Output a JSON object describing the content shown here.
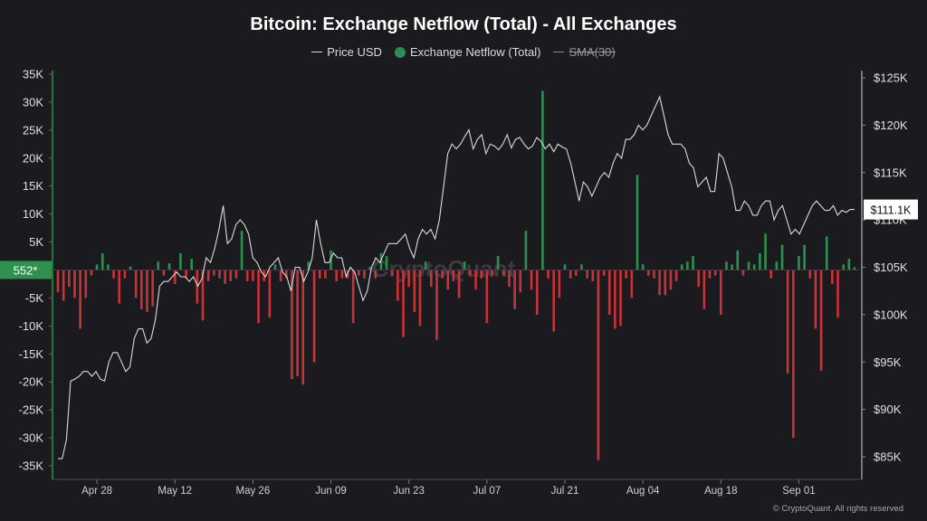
{
  "chart_data": {
    "type": "bar+line",
    "title": "Bitcoin: Exchange Netflow (Total) - All Exchanges",
    "legend": [
      {
        "name": "Price USD",
        "kind": "line",
        "color": "#d8d8d8"
      },
      {
        "name": "Exchange Netflow (Total)",
        "kind": "dot",
        "color": "#2e8b57"
      },
      {
        "name": "SMA(30)",
        "kind": "line-struck",
        "color": "#888888"
      }
    ],
    "colors": {
      "positive": "#2f8f4e",
      "negative": "#c8333a",
      "price": "#dadada",
      "background": "#1b1b1f"
    },
    "x_ticks": [
      "Apr 28",
      "May 12",
      "May 26",
      "Jun 09",
      "Jun 23",
      "Jul 07",
      "Jul 21",
      "Aug 04",
      "Aug 18",
      "Sep 01"
    ],
    "x_tick_day_index": [
      7,
      21,
      35,
      49,
      63,
      77,
      91,
      105,
      119,
      133
    ],
    "y_left_ticks": [
      "35K",
      "30K",
      "25K",
      "20K",
      "15K",
      "10K",
      "5K",
      "0",
      "-5K",
      "-10K",
      "-15K",
      "-20K",
      "-25K",
      "-30K",
      "-35K"
    ],
    "y_left_values": [
      35000,
      30000,
      25000,
      20000,
      15000,
      10000,
      5000,
      0,
      -5000,
      -10000,
      -15000,
      -20000,
      -25000,
      -30000,
      -35000
    ],
    "y_left_range": [
      -35000,
      35000
    ],
    "y_right_ticks": [
      "$125K",
      "$120K",
      "$115K",
      "$110K",
      "$105K",
      "$100K",
      "$95K",
      "$90K",
      "$85K"
    ],
    "y_right_values": [
      125000,
      120000,
      115000,
      110000,
      105000,
      100000,
      95000,
      90000,
      85000
    ],
    "y_right_range": [
      85000,
      125000
    ],
    "last_netflow_label": "552*",
    "last_price_label": "$111.1K",
    "netflow": [
      -4000,
      -5000,
      -3000,
      -5000,
      -10500,
      -5000,
      -1000,
      1000,
      3000,
      1000,
      -1500,
      -6000,
      -1500,
      -5000,
      1000,
      -4000,
      -7000,
      -7500,
      -6500,
      1500,
      -1000,
      1200,
      -2000,
      3000,
      -1000,
      2000,
      -1500,
      -5000,
      -9000,
      -1500,
      -1000,
      -7000,
      1000,
      -2500,
      500,
      -2000,
      -1500,
      7000,
      -2000,
      -2000,
      -6000,
      -2000,
      -9500,
      -1000,
      -1500,
      -6500,
      1200,
      1000,
      -2000,
      -8500,
      -1000,
      500,
      -3000,
      -19500,
      -19000,
      -20500,
      1500,
      -16500,
      -1000,
      -1500,
      -1500,
      -2000,
      3500,
      -1000,
      -2500,
      -1500,
      -9500,
      -1000,
      -2000,
      -1500,
      500,
      -1500,
      -1000,
      -2000,
      2500,
      -1000,
      3000,
      -1000,
      -1500,
      -1500,
      -5500,
      -12000,
      -1000,
      -3000,
      -7500,
      -10000,
      1500,
      -3000,
      -12500,
      -1000,
      -1500,
      -3500,
      -2000,
      -5000,
      1500,
      -1000,
      -3500,
      -1500,
      -9500,
      -1000,
      2500,
      -1000,
      -3000,
      -7000,
      -4000,
      -4500,
      7000,
      -3500,
      -8000,
      1000,
      -1500,
      -11000,
      -5000,
      -10000,
      1000,
      -5000,
      -1500,
      4500,
      -2000,
      -1500,
      -2500,
      -3000,
      -4000,
      1000,
      -1000,
      -8000,
      -1500,
      -15000,
      -1000,
      -1500,
      1000,
      500,
      -2000,
      -3000,
      -1000,
      -1000,
      -2500,
      -10000,
      4000,
      -3500,
      -2000,
      -4500,
      -1000,
      -3000,
      500,
      1500,
      -1500,
      -1000,
      -2000,
      1500,
      1500,
      2000,
      -1500,
      1000,
      -4500,
      -7500,
      -2000,
      -1500,
      1500,
      -1000,
      -7000,
      -4000,
      -5500,
      -1500,
      -1500,
      2000,
      3000,
      -2000,
      1500,
      -1500,
      1000,
      -1500,
      1000,
      -6000,
      -2000,
      -2500,
      -3000,
      500,
      1500,
      2000,
      3500,
      -1500,
      1000,
      3000,
      -1000,
      1000,
      1500,
      1000,
      -1000,
      1000,
      -1500,
      1000,
      -3000,
      -1500,
      -2000,
      -1000,
      1500,
      3500,
      -1000,
      -1000,
      1000,
      -1000,
      1500,
      -2000,
      1000,
      -1000,
      -1000,
      2000,
      -1000,
      -1500,
      1000,
      1500,
      -1000,
      1000,
      500
    ],
    "netflow_bars": [
      {
        "day": 0,
        "value": -4000
      },
      {
        "day": 1,
        "value": -5500
      },
      {
        "day": 2,
        "value": -3000
      },
      {
        "day": 3,
        "value": -5000
      },
      {
        "day": 4,
        "value": -10500
      },
      {
        "day": 5,
        "value": -5000
      },
      {
        "day": 6,
        "value": -1000
      },
      {
        "day": 7,
        "value": 1000
      },
      {
        "day": 8,
        "value": 3000
      },
      {
        "day": 9,
        "value": 1000
      },
      {
        "day": 10,
        "value": -1500
      },
      {
        "day": 11,
        "value": -6000
      },
      {
        "day": 12,
        "value": -1500
      },
      {
        "day": 13,
        "value": 600
      },
      {
        "day": 14,
        "value": -5000
      },
      {
        "day": 15,
        "value": -7000
      },
      {
        "day": 16,
        "value": -7500
      },
      {
        "day": 17,
        "value": -6500
      },
      {
        "day": 18,
        "value": 1500
      },
      {
        "day": 19,
        "value": -1000
      },
      {
        "day": 20,
        "value": 1200
      },
      {
        "day": 21,
        "value": -2500
      },
      {
        "day": 22,
        "value": 3000
      },
      {
        "day": 23,
        "value": -1500
      },
      {
        "day": 24,
        "value": 2000
      },
      {
        "day": 25,
        "value": -6000
      },
      {
        "day": 26,
        "value": -9000
      },
      {
        "day": 27,
        "value": -2000
      },
      {
        "day": 28,
        "value": -1000
      },
      {
        "day": 29,
        "value": -1500
      },
      {
        "day": 30,
        "value": -2500
      },
      {
        "day": 31,
        "value": -2000
      },
      {
        "day": 32,
        "value": -1500
      },
      {
        "day": 33,
        "value": 7000
      },
      {
        "day": 34,
        "value": -2000
      },
      {
        "day": 35,
        "value": -2000
      },
      {
        "day": 36,
        "value": -9500
      },
      {
        "day": 37,
        "value": -2000
      },
      {
        "day": 38,
        "value": -8500
      },
      {
        "day": 39,
        "value": 1000
      },
      {
        "day": 40,
        "value": -2000
      },
      {
        "day": 41,
        "value": -1500
      },
      {
        "day": 42,
        "value": -19500
      },
      {
        "day": 43,
        "value": -19000
      },
      {
        "day": 44,
        "value": -20500
      },
      {
        "day": 45,
        "value": 1500
      },
      {
        "day": 46,
        "value": -16500
      },
      {
        "day": 47,
        "value": -1500
      },
      {
        "day": 48,
        "value": -1500
      },
      {
        "day": 49,
        "value": 3500
      },
      {
        "day": 50,
        "value": -2000
      },
      {
        "day": 51,
        "value": -1500
      },
      {
        "day": 52,
        "value": -1500
      },
      {
        "day": 53,
        "value": -9500
      },
      {
        "day": 54,
        "value": -1000
      },
      {
        "day": 55,
        "value": -1500
      },
      {
        "day": 56,
        "value": 500
      },
      {
        "day": 57,
        "value": -1500
      },
      {
        "day": 58,
        "value": 3000
      },
      {
        "day": 59,
        "value": 2500
      },
      {
        "day": 60,
        "value": -1000
      },
      {
        "day": 61,
        "value": -5500
      },
      {
        "day": 62,
        "value": -12000
      },
      {
        "day": 63,
        "value": -3000
      },
      {
        "day": 64,
        "value": -7500
      },
      {
        "day": 65,
        "value": -10000
      },
      {
        "day": 66,
        "value": 1500
      },
      {
        "day": 67,
        "value": -3000
      },
      {
        "day": 68,
        "value": -12500
      },
      {
        "day": 69,
        "value": -1500
      },
      {
        "day": 70,
        "value": -3500
      },
      {
        "day": 71,
        "value": -2000
      },
      {
        "day": 72,
        "value": -5000
      },
      {
        "day": 73,
        "value": 1500
      },
      {
        "day": 74,
        "value": -1000
      },
      {
        "day": 75,
        "value": -3500
      },
      {
        "day": 76,
        "value": -1500
      },
      {
        "day": 77,
        "value": -9500
      },
      {
        "day": 78,
        "value": -1000
      },
      {
        "day": 79,
        "value": 2500
      },
      {
        "day": 80,
        "value": -1000
      },
      {
        "day": 81,
        "value": -3000
      },
      {
        "day": 82,
        "value": -7000
      },
      {
        "day": 83,
        "value": -4000
      },
      {
        "day": 84,
        "value": 7000
      },
      {
        "day": 85,
        "value": -3500
      },
      {
        "day": 86,
        "value": -8000
      },
      {
        "day": 87,
        "value": 32000
      },
      {
        "day": 88,
        "value": -1500
      },
      {
        "day": 89,
        "value": -11000
      },
      {
        "day": 90,
        "value": -5000
      },
      {
        "day": 91,
        "value": 1000
      },
      {
        "day": 92,
        "value": -1500
      },
      {
        "day": 93,
        "value": -1000
      },
      {
        "day": 94,
        "value": 1000
      },
      {
        "day": 95,
        "value": -1500
      },
      {
        "day": 96,
        "value": -2000
      },
      {
        "day": 97,
        "value": -34000
      },
      {
        "day": 98,
        "value": -1000
      },
      {
        "day": 99,
        "value": -8000
      },
      {
        "day": 100,
        "value": -10500
      },
      {
        "day": 101,
        "value": -10000
      },
      {
        "day": 102,
        "value": -1500
      },
      {
        "day": 103,
        "value": -5000
      },
      {
        "day": 104,
        "value": 17000
      },
      {
        "day": 105,
        "value": 1000
      },
      {
        "day": 106,
        "value": -1000
      },
      {
        "day": 107,
        "value": -1500
      },
      {
        "day": 108,
        "value": -4500
      },
      {
        "day": 109,
        "value": -4500
      },
      {
        "day": 110,
        "value": -3500
      },
      {
        "day": 111,
        "value": -2000
      },
      {
        "day": 112,
        "value": 1000
      },
      {
        "day": 113,
        "value": 1500
      },
      {
        "day": 114,
        "value": 2500
      },
      {
        "day": 115,
        "value": -3000
      },
      {
        "day": 116,
        "value": -7000
      },
      {
        "day": 117,
        "value": -1500
      },
      {
        "day": 118,
        "value": -1000
      },
      {
        "day": 119,
        "value": -8000
      },
      {
        "day": 120,
        "value": 1500
      },
      {
        "day": 121,
        "value": 1000
      },
      {
        "day": 122,
        "value": 3500
      },
      {
        "day": 123,
        "value": -1000
      },
      {
        "day": 124,
        "value": 1500
      },
      {
        "day": 125,
        "value": 1000
      },
      {
        "day": 126,
        "value": 3000
      },
      {
        "day": 127,
        "value": 6500
      },
      {
        "day": 128,
        "value": -1500
      },
      {
        "day": 129,
        "value": 1500
      },
      {
        "day": 130,
        "value": 4500
      },
      {
        "day": 131,
        "value": -18500
      },
      {
        "day": 132,
        "value": -30000
      },
      {
        "day": 133,
        "value": 2500
      },
      {
        "day": 134,
        "value": 4500
      },
      {
        "day": 135,
        "value": -1500
      },
      {
        "day": 136,
        "value": -10500
      },
      {
        "day": 137,
        "value": -18000
      },
      {
        "day": 138,
        "value": 6000
      },
      {
        "day": 139,
        "value": -2500
      },
      {
        "day": 140,
        "value": -8500
      },
      {
        "day": 141,
        "value": 1000
      },
      {
        "day": 142,
        "value": 2000
      },
      {
        "day": 143,
        "value": 500
      }
    ],
    "price_usd": [
      84800,
      84800,
      86800,
      93000,
      93200,
      93500,
      94000,
      94000,
      93500,
      94000,
      93200,
      93000,
      95000,
      96000,
      96000,
      95000,
      94000,
      94500,
      97500,
      98500,
      98500,
      97000,
      97500,
      99500,
      103000,
      103500,
      103500,
      104000,
      104500,
      104000,
      104000,
      103500,
      104000,
      103000,
      103800,
      106000,
      105500,
      107000,
      109000,
      111500,
      107500,
      108000,
      109500,
      110000,
      109500,
      108500,
      106000,
      105500,
      104500,
      104000,
      105000,
      105500,
      106000,
      104500,
      104000,
      102500,
      105000,
      105000,
      103500,
      104500,
      106000,
      110000,
      107500,
      105500,
      105500,
      106500,
      106000,
      106000,
      104000,
      105000,
      104500,
      103000,
      101500,
      102500,
      105000,
      106000,
      105500,
      106500,
      107500,
      107500,
      107500,
      108000,
      108500,
      107000,
      106000,
      108000,
      109000,
      108500,
      109000,
      108000,
      110000,
      113500,
      117000,
      118000,
      117500,
      118000,
      118800,
      119500,
      117500,
      118500,
      119000,
      117000,
      118000,
      117800,
      117400,
      118000,
      119000,
      117600,
      118500,
      118700,
      118000,
      117500,
      117800,
      118700,
      118300,
      117500,
      118000,
      117200,
      118000,
      117700,
      117500,
      116000,
      114000,
      112000,
      114000,
      113500,
      112500,
      113500,
      114500,
      115000,
      114500,
      116000,
      117000,
      116500,
      118500,
      118500,
      119000,
      120000,
      119500,
      120000,
      121000,
      122000,
      123000,
      121000,
      119000,
      118000,
      118000,
      118000,
      117500,
      116000,
      115500,
      113500,
      114000,
      114500,
      113000,
      113000,
      117000,
      116500,
      115000,
      113500,
      111000,
      111000,
      112000,
      111500,
      110500,
      110500,
      111500,
      112000,
      112000,
      110000,
      111000,
      111500,
      110000,
      108500,
      109000,
      108500,
      109500,
      110500,
      111500,
      112000,
      111500,
      111000,
      111000,
      111500,
      110500,
      111000,
      110800,
      111100,
      111100
    ],
    "watermark": "CryptoQuant",
    "footer": "© CryptoQuant. All rights reserved"
  }
}
